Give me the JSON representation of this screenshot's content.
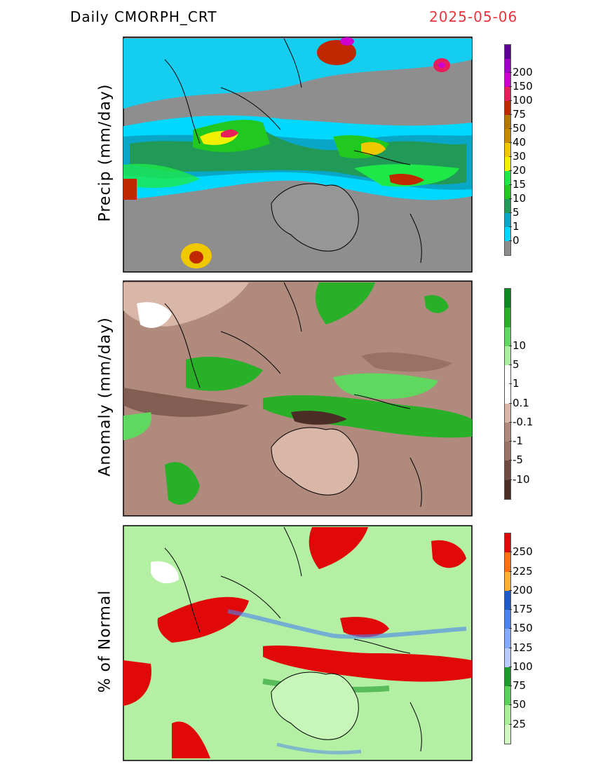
{
  "header": {
    "product": "Daily  CMORPH_CRT",
    "date": "2025-05-06",
    "date_color": "#e8363c"
  },
  "panels": [
    {
      "ylabel": "Precip (mm/day)",
      "background": "#9a9a9a",
      "land": "#969696",
      "colors": [
        "#8c8c8c",
        "#00d8ff",
        "#0aa6c8",
        "#209a56",
        "#20c820",
        "#1ee848",
        "#f0f000",
        "#f0c800",
        "#c88a00",
        "#b47800",
        "#c02800",
        "#e81e5c",
        "#d000d0",
        "#a000c8",
        "#5a0096"
      ],
      "ticks": [
        "0",
        "1",
        "5",
        "10",
        "15",
        "20",
        "30",
        "40",
        "50",
        "75",
        "100",
        "150",
        "200"
      ]
    },
    {
      "ylabel": "Anomaly (mm/day)",
      "background": "#b08a7c",
      "land": "#d9b7a8",
      "colors": [
        "#4a2e26",
        "#6e4a40",
        "#9a7264",
        "#b08a7c",
        "#d9b7a8",
        "#ffffff",
        "#ffffff",
        "#a8f0a0",
        "#60d860",
        "#28b028",
        "#0a8a20"
      ],
      "ticks": [
        "-10",
        "-5",
        "-1",
        "-0.1",
        "0.1",
        "1",
        "5",
        "10"
      ]
    },
    {
      "ylabel": "% of Normal",
      "background": "#b4f0a4",
      "land": "#c8f5b8",
      "colors": [
        "#d0f8c0",
        "#a8f098",
        "#5ad25a",
        "#1a9a2a",
        "#b8ccff",
        "#82aaff",
        "#4a82f0",
        "#1e5ac8",
        "#ffb030",
        "#ff7010",
        "#e00808"
      ],
      "ticks": [
        "25",
        "50",
        "75",
        "100",
        "125",
        "150",
        "175",
        "200",
        "225",
        "250"
      ]
    }
  ]
}
